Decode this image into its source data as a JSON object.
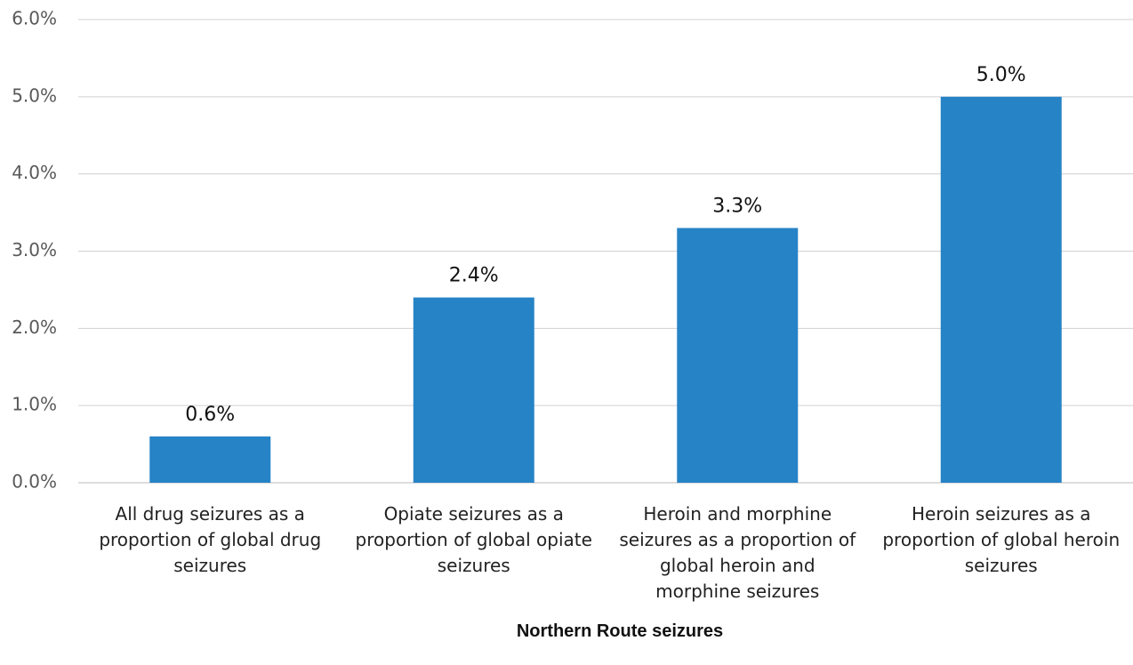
{
  "chart_data": {
    "type": "bar",
    "x_label": "Northern Route seizures",
    "categories": [
      "All drug seizures as a proportion of global drug seizures",
      "Opiate seizures as a proportion of global opiate seizures",
      "Heroin and morphine seizures as a proportion of global heroin and morphine seizures",
      "Heroin seizures as a proportion of global heroin seizures"
    ],
    "values": [
      0.6,
      2.4,
      3.3,
      5.0
    ],
    "value_labels": [
      "0.6%",
      "2.4%",
      "3.3%",
      "5.0%"
    ],
    "color": "#2683c6",
    "ylim": [
      0,
      6
    ],
    "yticks": [
      {
        "value": 0,
        "label": "0.0%"
      },
      {
        "value": 1,
        "label": "1.0%"
      },
      {
        "value": 2,
        "label": "2.0%"
      },
      {
        "value": 3,
        "label": "3.0%"
      },
      {
        "value": 4,
        "label": "4.0%"
      },
      {
        "value": 5,
        "label": "5.0%"
      },
      {
        "value": 6,
        "label": "6.0%"
      }
    ],
    "grid": true
  }
}
